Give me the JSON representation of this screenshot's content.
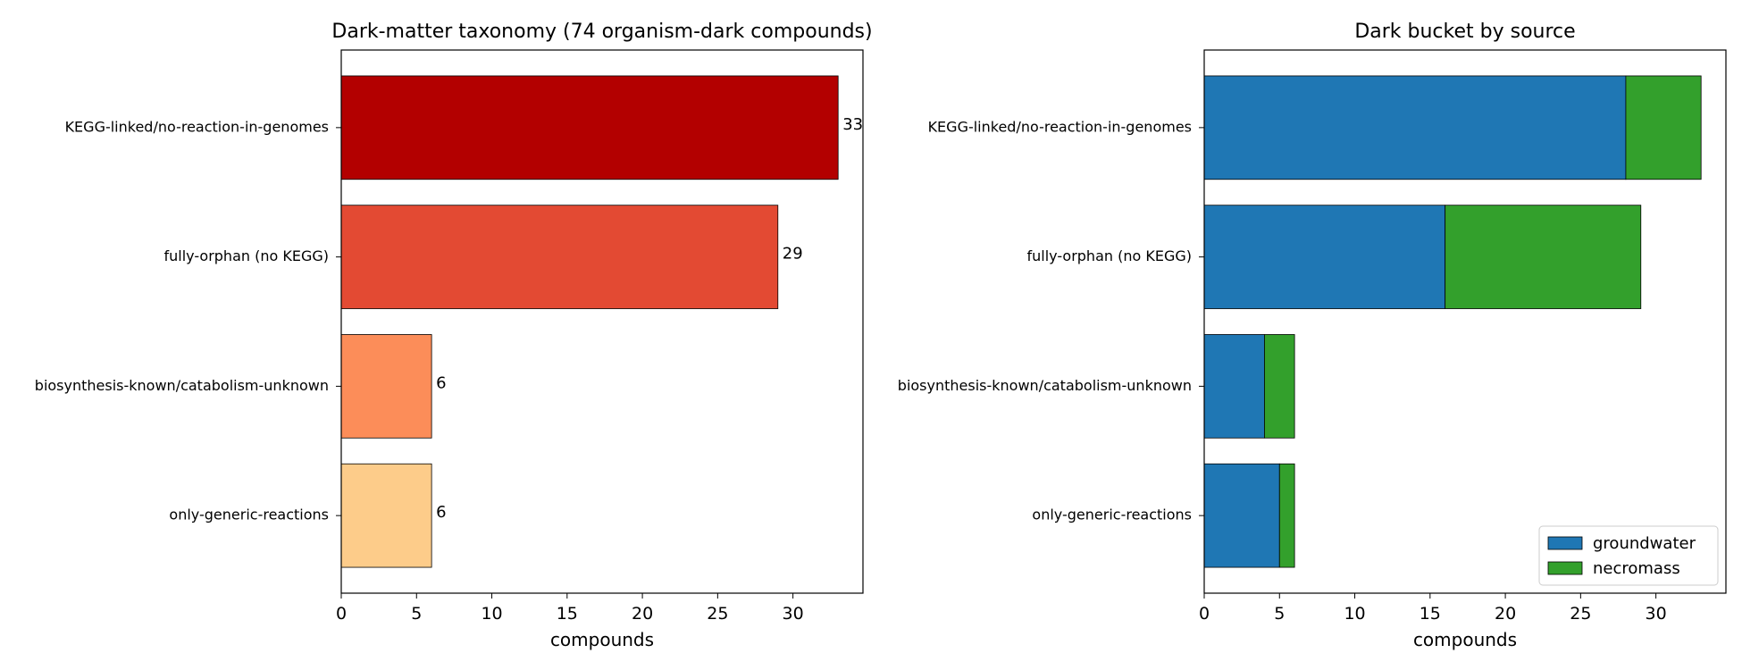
{
  "chart_data": [
    {
      "type": "bar",
      "orientation": "horizontal",
      "title": "Dark-matter taxonomy (74 organism-dark compounds)",
      "xlabel": "compounds",
      "ylabel": "",
      "xlim": [
        0,
        34.65
      ],
      "xticks": [
        "0",
        "5",
        "10",
        "15",
        "20",
        "25",
        "30"
      ],
      "categories": [
        "KEGG-linked/no-reaction-in-genomes",
        "fully-orphan (no KEGG)",
        "biosynthesis-known/catabolism-unknown",
        "only-generic-reactions"
      ],
      "values": [
        33,
        29,
        6,
        6
      ],
      "data_labels": [
        "33",
        "29",
        "6",
        "6"
      ],
      "colors": [
        "#b30000",
        "#e34a33",
        "#fc8d59",
        "#fdcc8a"
      ],
      "grid": false
    },
    {
      "type": "bar",
      "orientation": "horizontal",
      "stacked": true,
      "title": "Dark bucket by source",
      "xlabel": "compounds",
      "ylabel": "",
      "xlim": [
        0,
        34.65
      ],
      "xticks": [
        "0",
        "5",
        "10",
        "15",
        "20",
        "25",
        "30"
      ],
      "categories": [
        "KEGG-linked/no-reaction-in-genomes",
        "fully-orphan (no KEGG)",
        "biosynthesis-known/catabolism-unknown",
        "only-generic-reactions"
      ],
      "series": [
        {
          "name": "groundwater",
          "values": [
            28,
            16,
            4,
            5
          ],
          "color": "#1f77b4"
        },
        {
          "name": "necromass",
          "values": [
            5,
            13,
            2,
            1
          ],
          "color": "#33a02c"
        }
      ],
      "legend": "lower-right",
      "grid": false
    }
  ]
}
